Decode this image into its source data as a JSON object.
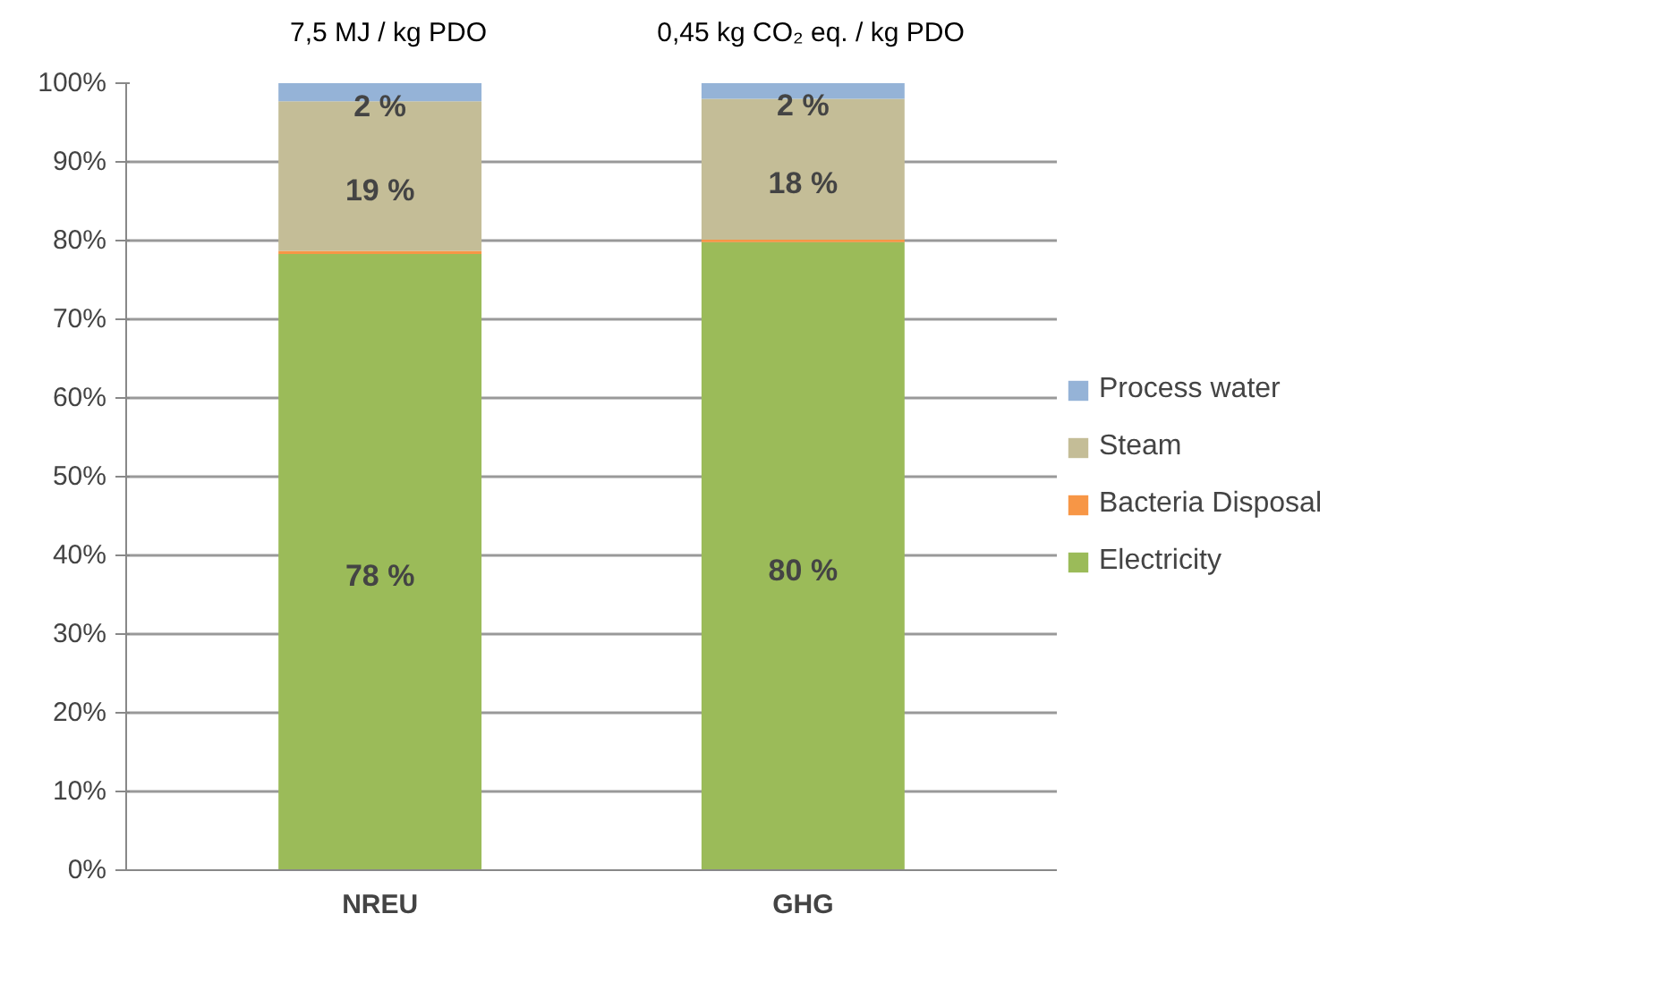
{
  "chart_data": {
    "type": "bar",
    "stacked": true,
    "categories": [
      "NREU",
      "GHG"
    ],
    "series": [
      {
        "name": "Electricity",
        "color": "#9bbb59",
        "values": [
          78.3,
          79.8
        ],
        "value_labels": [
          "78 %",
          "80 %"
        ]
      },
      {
        "name": "Bacteria Disposal",
        "color": "#f79646",
        "values": [
          0.4,
          0.3
        ],
        "value_labels": [
          null,
          null
        ]
      },
      {
        "name": "Steam",
        "color": "#c4bd97",
        "values": [
          19.0,
          17.9
        ],
        "value_labels": [
          "19 %",
          "18 %"
        ]
      },
      {
        "name": "Process water",
        "color": "#95b3d7",
        "values": [
          2.3,
          2.0
        ],
        "value_labels": [
          "2 %",
          "2 %"
        ]
      }
    ],
    "ylim": [
      0,
      100
    ],
    "yticks": [
      {
        "value": 0,
        "label": "0%"
      },
      {
        "value": 10,
        "label": "10%"
      },
      {
        "value": 20,
        "label": "20%"
      },
      {
        "value": 30,
        "label": "30%"
      },
      {
        "value": 40,
        "label": "40%"
      },
      {
        "value": 50,
        "label": "50%"
      },
      {
        "value": 60,
        "label": "60%"
      },
      {
        "value": 70,
        "label": "70%"
      },
      {
        "value": 80,
        "label": "80%"
      },
      {
        "value": 90,
        "label": "90%"
      },
      {
        "value": 100,
        "label": "100%"
      }
    ],
    "grid": "y",
    "legend": "right",
    "annotations": [
      {
        "text": "7,5 MJ / kg PDO",
        "x": "NREU",
        "y": 100
      },
      {
        "text": "0,45 kg CO₂ eq. / kg PDO",
        "x": "GHG",
        "y": 100
      }
    ]
  }
}
